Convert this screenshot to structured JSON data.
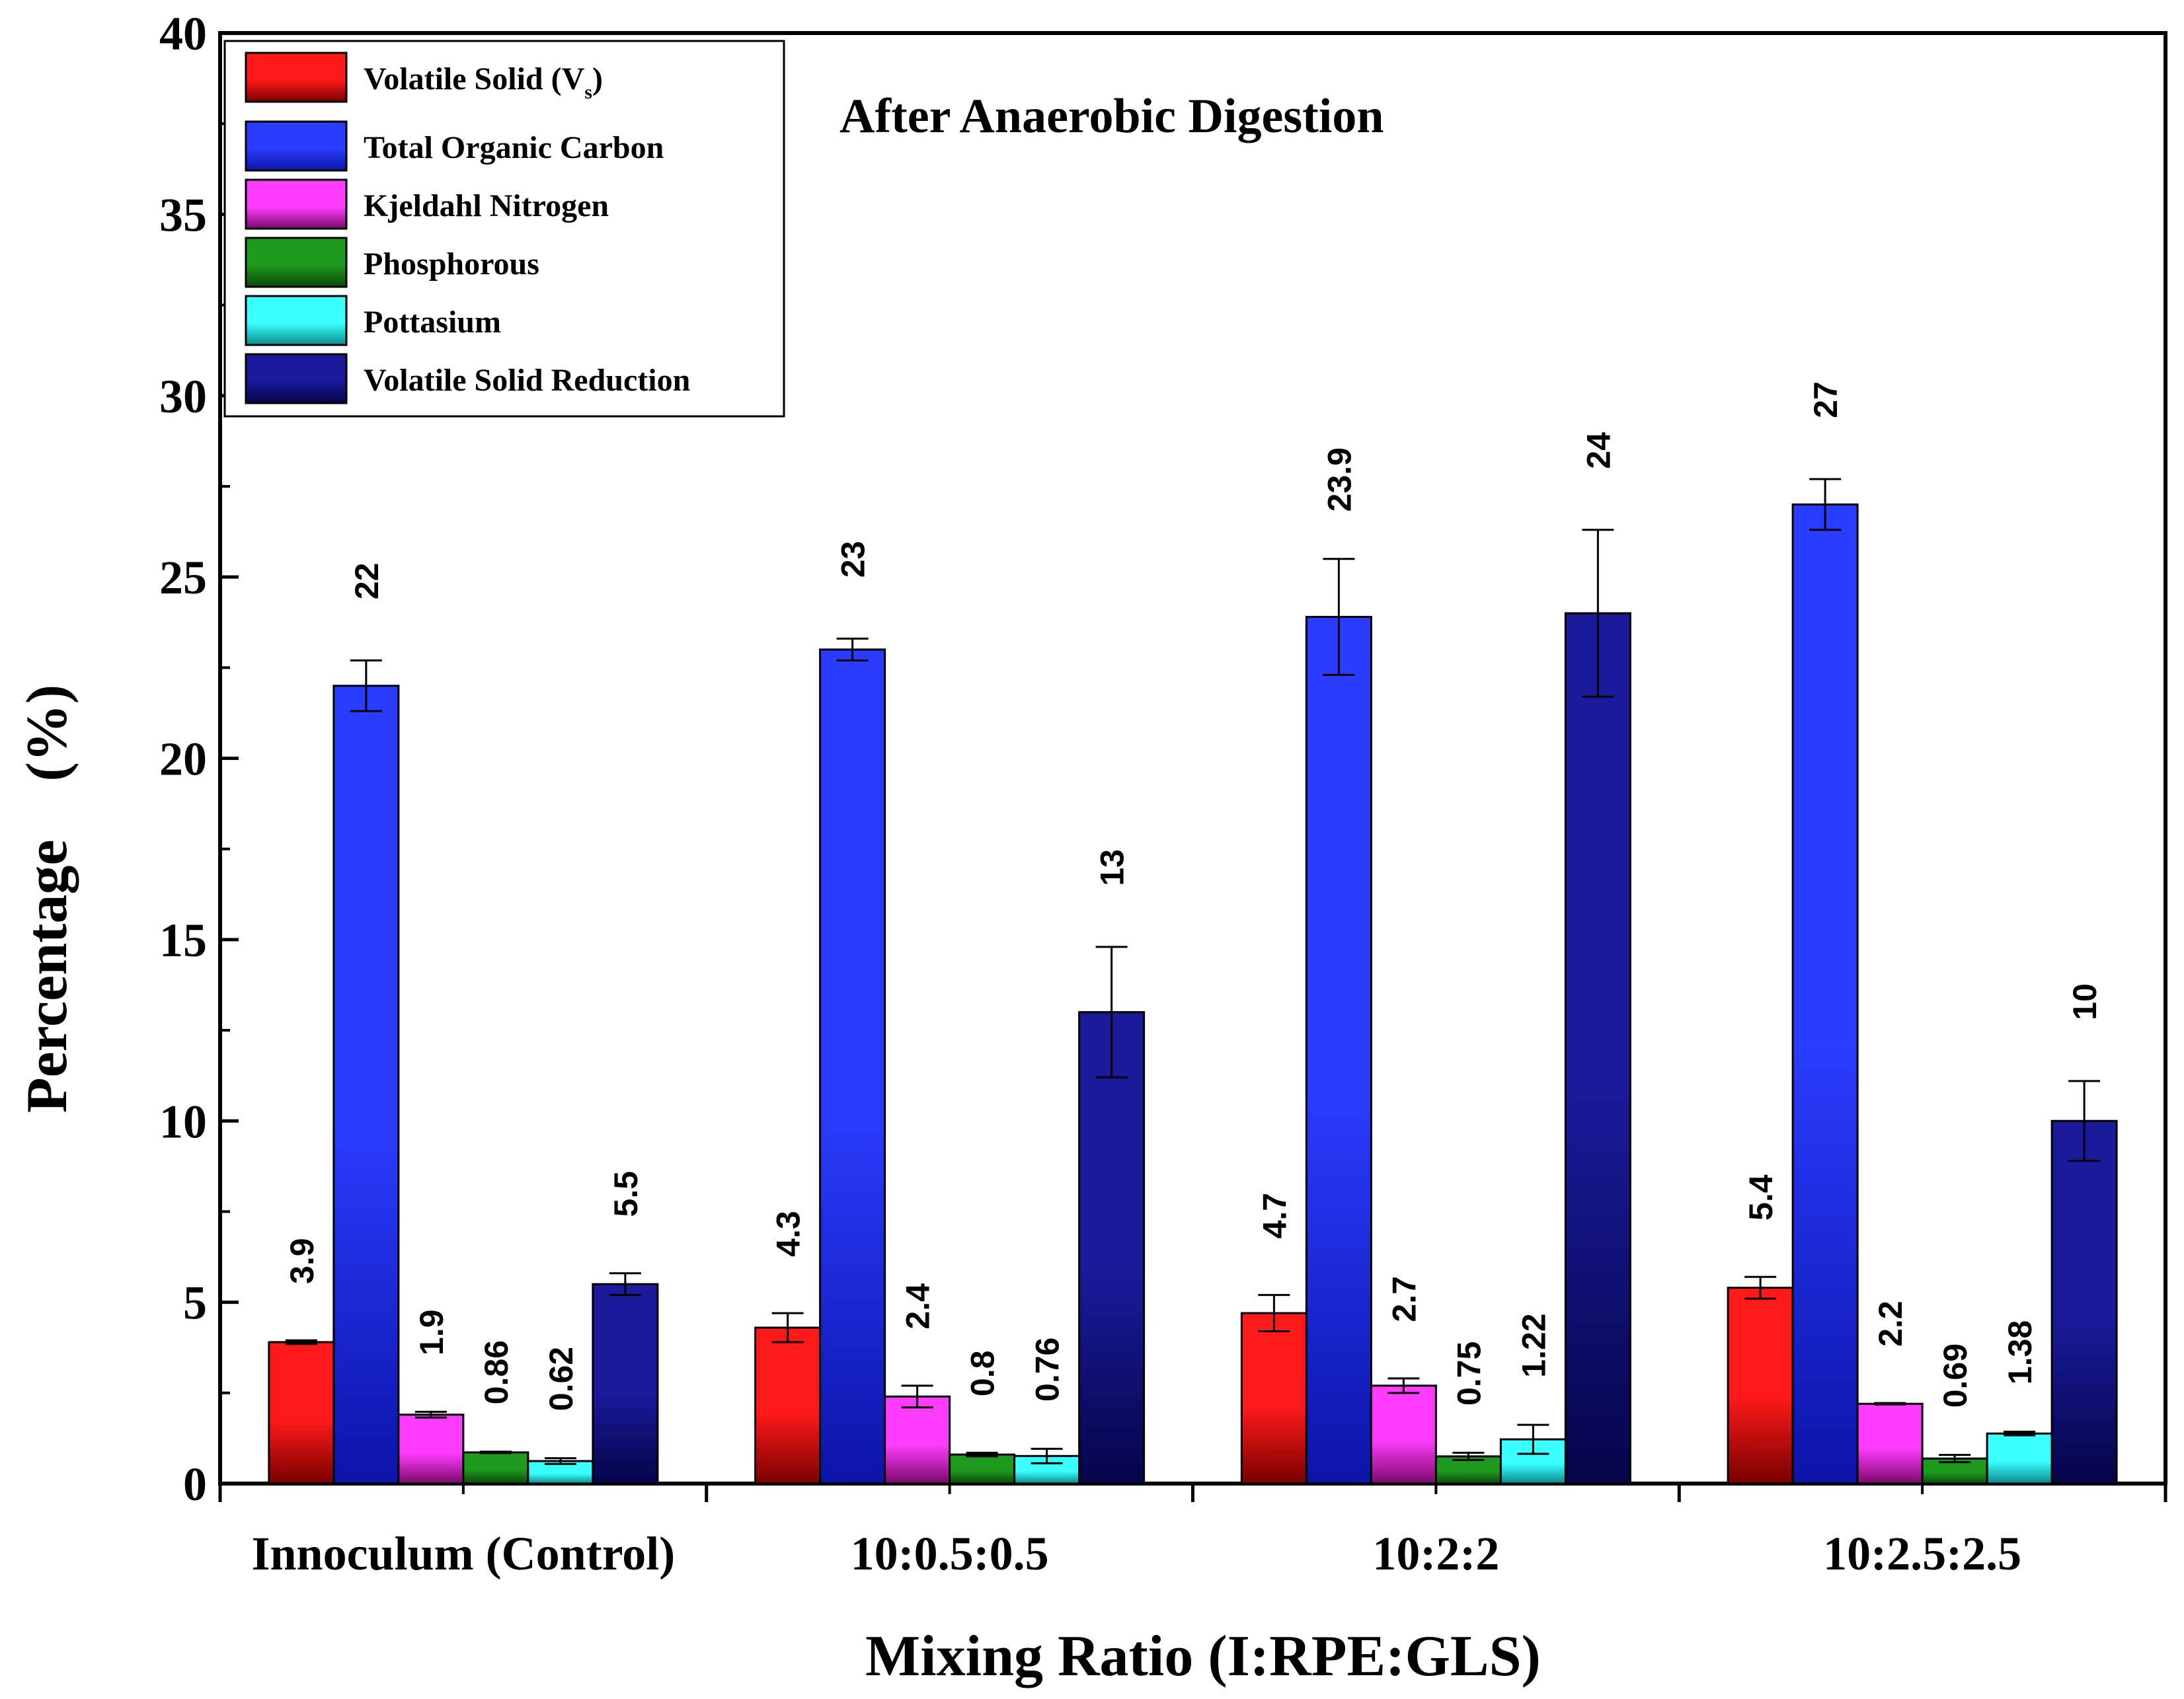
{
  "chart_data": {
    "type": "bar",
    "title": "After Anaerobic Digestion",
    "xlabel": "Mixing Ratio (I:RPE:GLS)",
    "ylabel": "Percentage    (%)",
    "ylim": [
      0,
      40
    ],
    "yticks": [
      "0",
      "5",
      "10",
      "15",
      "20",
      "25",
      "30",
      "35",
      "40"
    ],
    "categories": [
      "Innoculum (Control)",
      "10:0.5:0.5",
      "10:2:2",
      "10:2.5:2.5"
    ],
    "legend_position": "top-left",
    "legend_subscript": "s",
    "legend_close": ")",
    "series": [
      {
        "name": "Volatile Solid (V",
        "color_top": "#ff1a1a",
        "color_bottom": "#7a0000",
        "values": [
          3.9,
          4.3,
          4.7,
          5.4
        ],
        "labels": [
          "3.9",
          "4.3",
          "4.7",
          "5.4"
        ],
        "errors": [
          0.05,
          0.4,
          0.5,
          0.3
        ]
      },
      {
        "name": "Total Organic Carbon",
        "color_top": "#2a3cff",
        "color_bottom": "#0c14a8",
        "values": [
          22,
          23,
          23.9,
          27
        ],
        "labels": [
          "22",
          "23",
          "23.9",
          "27"
        ],
        "errors": [
          0.7,
          0.3,
          1.6,
          0.7
        ]
      },
      {
        "name": "Kjeldahl Nitrogen",
        "color_top": "#ff3cff",
        "color_bottom": "#7a0a6a",
        "values": [
          1.9,
          2.4,
          2.7,
          2.2
        ],
        "labels": [
          "1.9",
          "2.4",
          "2.7",
          "2.2"
        ],
        "errors": [
          0.08,
          0.3,
          0.2,
          0.02
        ]
      },
      {
        "name": "Phosphorous",
        "color_top": "#1e9a1e",
        "color_bottom": "#0a4a0a",
        "values": [
          0.86,
          0.8,
          0.75,
          0.69
        ],
        "labels": [
          "0.86",
          "0.8",
          "0.75",
          "0.69"
        ],
        "errors": [
          0.02,
          0.05,
          0.1,
          0.1
        ]
      },
      {
        "name": "Pottasium",
        "color_top": "#39ffff",
        "color_bottom": "#0a8a8a",
        "values": [
          0.62,
          0.76,
          1.22,
          1.38
        ],
        "labels": [
          "0.62",
          "0.76",
          "1.22",
          "1.38"
        ],
        "errors": [
          0.08,
          0.2,
          0.4,
          0.05
        ]
      },
      {
        "name": "Volatile Solid Reduction",
        "color_top": "#1a1a9a",
        "color_bottom": "#05054a",
        "values": [
          5.5,
          13,
          24,
          10
        ],
        "labels": [
          "5.5",
          "13",
          "24",
          "10"
        ],
        "errors": [
          0.3,
          1.8,
          2.3,
          1.1
        ]
      }
    ]
  }
}
